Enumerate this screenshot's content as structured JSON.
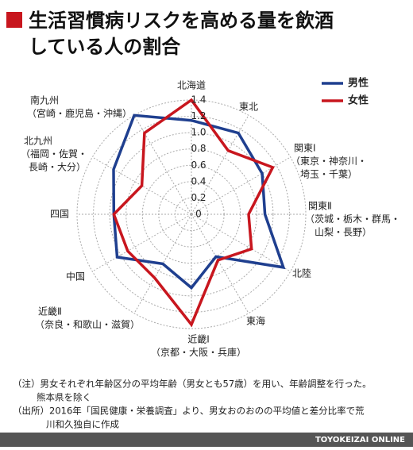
{
  "chart_data": {
    "type": "radar",
    "title": [
      "生活習慣病リスクを高める量を飲酒",
      "している人の割合"
    ],
    "categories": [
      [
        "北海道"
      ],
      [
        "東北"
      ],
      [
        "関東Ⅰ",
        "（東京・神奈川・",
        "埼玉・千葉）"
      ],
      [
        "関東Ⅱ",
        "（茨城・栃木・群馬・",
        "山梨・長野）"
      ],
      [
        "北陸"
      ],
      [
        "東海"
      ],
      [
        "近畿Ⅰ",
        "（京都・大阪・兵庫）"
      ],
      [
        "近畿Ⅱ",
        "（奈良・和歌山・滋賀）"
      ],
      [
        "中国"
      ],
      [
        "四国"
      ],
      [
        "北九州",
        "（福岡・佐賀・",
        "長崎・大分）"
      ],
      [
        "南九州",
        "（宮崎・鹿児島・沖縄）"
      ]
    ],
    "series": [
      {
        "name": "男性",
        "color": "#1f3f8f",
        "values": [
          1.15,
          1.15,
          1.0,
          0.9,
          1.3,
          0.6,
          0.9,
          0.7,
          1.05,
          0.95,
          1.1,
          1.4
        ]
      },
      {
        "name": "女性",
        "color": "#c8161e",
        "values": [
          1.4,
          0.9,
          1.15,
          0.7,
          0.85,
          0.65,
          1.35,
          0.9,
          0.9,
          0.95,
          0.7,
          1.15
        ]
      }
    ],
    "ylim": [
      0,
      1.4
    ],
    "yticks": [
      0,
      0.2,
      0.4,
      0.6,
      0.8,
      {
        "value": 1,
        "label": "1.0"
      },
      1.2,
      1.4
    ],
    "grid": true,
    "legend": "top-right",
    "notes": [
      "（注）男女それぞれ年齢区分の平均年齢（男女とも57歳）を用い、年齢調整を行った。",
      "熊本県を除く",
      "（出所）2016年「国民健康・栄養調査」より、男女おのおのの平均値と差分比率で荒",
      "川和久独自に作成"
    ],
    "source": "TOYOKEIZAI ONLINE"
  }
}
